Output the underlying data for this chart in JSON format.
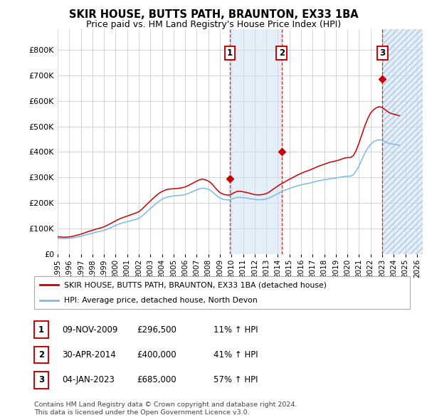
{
  "title": "SKIR HOUSE, BUTTS PATH, BRAUNTON, EX33 1BA",
  "subtitle": "Price paid vs. HM Land Registry's House Price Index (HPI)",
  "xlim": [
    1995.0,
    2026.5
  ],
  "ylim": [
    0,
    880000
  ],
  "yticks": [
    0,
    100000,
    200000,
    300000,
    400000,
    500000,
    600000,
    700000,
    800000
  ],
  "xticks": [
    1995,
    1996,
    1997,
    1998,
    1999,
    2000,
    2001,
    2002,
    2003,
    2004,
    2005,
    2006,
    2007,
    2008,
    2009,
    2010,
    2011,
    2012,
    2013,
    2014,
    2015,
    2016,
    2017,
    2018,
    2019,
    2020,
    2021,
    2022,
    2023,
    2024,
    2025,
    2026
  ],
  "sale_dates": [
    2009.86,
    2014.33,
    2023.02
  ],
  "sale_prices": [
    296500,
    400000,
    685000
  ],
  "sale_labels": [
    "1",
    "2",
    "3"
  ],
  "sale_annotations": [
    [
      "09-NOV-2009",
      "£296,500",
      "11% ↑ HPI"
    ],
    [
      "30-APR-2014",
      "£400,000",
      "41% ↑ HPI"
    ],
    [
      "04-JAN-2023",
      "£685,000",
      "57% ↑ HPI"
    ]
  ],
  "legend_line1": "SKIR HOUSE, BUTTS PATH, BRAUNTON, EX33 1BA (detached house)",
  "legend_line2": "HPI: Average price, detached house, North Devon",
  "footer1": "Contains HM Land Registry data © Crown copyright and database right 2024.",
  "footer2": "This data is licensed under the Open Government Licence v3.0.",
  "red_color": "#cc0000",
  "blue_color": "#7cb9e8",
  "shade_color": "#cce0f5",
  "hatch_color": "#b0c8e0",
  "grid_color": "#cccccc",
  "bg_color": "#ffffff",
  "hpi_data_x": [
    1995.0,
    1995.25,
    1995.5,
    1995.75,
    1996.0,
    1996.25,
    1996.5,
    1996.75,
    1997.0,
    1997.25,
    1997.5,
    1997.75,
    1998.0,
    1998.25,
    1998.5,
    1998.75,
    1999.0,
    1999.25,
    1999.5,
    1999.75,
    2000.0,
    2000.25,
    2000.5,
    2000.75,
    2001.0,
    2001.25,
    2001.5,
    2001.75,
    2002.0,
    2002.25,
    2002.5,
    2002.75,
    2003.0,
    2003.25,
    2003.5,
    2003.75,
    2004.0,
    2004.25,
    2004.5,
    2004.75,
    2005.0,
    2005.25,
    2005.5,
    2005.75,
    2006.0,
    2006.25,
    2006.5,
    2006.75,
    2007.0,
    2007.25,
    2007.5,
    2007.75,
    2008.0,
    2008.25,
    2008.5,
    2008.75,
    2009.0,
    2009.25,
    2009.5,
    2009.75,
    2010.0,
    2010.25,
    2010.5,
    2010.75,
    2011.0,
    2011.25,
    2011.5,
    2011.75,
    2012.0,
    2012.25,
    2012.5,
    2012.75,
    2013.0,
    2013.25,
    2013.5,
    2013.75,
    2014.0,
    2014.25,
    2014.5,
    2014.75,
    2015.0,
    2015.25,
    2015.5,
    2015.75,
    2016.0,
    2016.25,
    2016.5,
    2016.75,
    2017.0,
    2017.25,
    2017.5,
    2017.75,
    2018.0,
    2018.25,
    2018.5,
    2018.75,
    2019.0,
    2019.25,
    2019.5,
    2019.75,
    2020.0,
    2020.25,
    2020.5,
    2020.75,
    2021.0,
    2021.25,
    2021.5,
    2021.75,
    2022.0,
    2022.25,
    2022.5,
    2022.75,
    2023.0,
    2023.25,
    2023.5,
    2023.75,
    2024.0,
    2024.25,
    2024.5
  ],
  "hpi_data_y": [
    62000,
    61000,
    60500,
    61000,
    62000,
    63000,
    65000,
    67000,
    70000,
    73000,
    76000,
    79000,
    82000,
    85000,
    88000,
    90000,
    93000,
    97000,
    102000,
    107000,
    112000,
    117000,
    121000,
    124000,
    127000,
    130000,
    133000,
    136000,
    140000,
    148000,
    158000,
    168000,
    178000,
    188000,
    198000,
    207000,
    215000,
    220000,
    224000,
    226000,
    228000,
    229000,
    230000,
    231000,
    233000,
    237000,
    242000,
    247000,
    252000,
    256000,
    258000,
    257000,
    254000,
    248000,
    238000,
    228000,
    220000,
    215000,
    213000,
    212000,
    215000,
    219000,
    222000,
    222000,
    221000,
    220000,
    218000,
    216000,
    214000,
    213000,
    213000,
    214000,
    216000,
    220000,
    225000,
    231000,
    237000,
    243000,
    248000,
    253000,
    257000,
    261000,
    265000,
    268000,
    271000,
    274000,
    276000,
    278000,
    281000,
    284000,
    287000,
    289000,
    291000,
    293000,
    295000,
    296000,
    298000,
    300000,
    302000,
    304000,
    305000,
    305000,
    310000,
    325000,
    345000,
    370000,
    395000,
    415000,
    430000,
    440000,
    445000,
    448000,
    445000,
    440000,
    435000,
    432000,
    430000,
    428000,
    426000
  ],
  "price_data_x": [
    1995.0,
    1995.25,
    1995.5,
    1995.75,
    1996.0,
    1996.25,
    1996.5,
    1996.75,
    1997.0,
    1997.25,
    1997.5,
    1997.75,
    1998.0,
    1998.25,
    1998.5,
    1998.75,
    1999.0,
    1999.25,
    1999.5,
    1999.75,
    2000.0,
    2000.25,
    2000.5,
    2000.75,
    2001.0,
    2001.25,
    2001.5,
    2001.75,
    2002.0,
    2002.25,
    2002.5,
    2002.75,
    2003.0,
    2003.25,
    2003.5,
    2003.75,
    2004.0,
    2004.25,
    2004.5,
    2004.75,
    2005.0,
    2005.25,
    2005.5,
    2005.75,
    2006.0,
    2006.25,
    2006.5,
    2006.75,
    2007.0,
    2007.25,
    2007.5,
    2007.75,
    2008.0,
    2008.25,
    2008.5,
    2008.75,
    2009.0,
    2009.25,
    2009.5,
    2009.75,
    2010.0,
    2010.25,
    2010.5,
    2010.75,
    2011.0,
    2011.25,
    2011.5,
    2011.75,
    2012.0,
    2012.25,
    2012.5,
    2012.75,
    2013.0,
    2013.25,
    2013.5,
    2013.75,
    2014.0,
    2014.25,
    2014.5,
    2014.75,
    2015.0,
    2015.25,
    2015.5,
    2015.75,
    2016.0,
    2016.25,
    2016.5,
    2016.75,
    2017.0,
    2017.25,
    2017.5,
    2017.75,
    2018.0,
    2018.25,
    2018.5,
    2018.75,
    2019.0,
    2019.25,
    2019.5,
    2019.75,
    2020.0,
    2020.25,
    2020.5,
    2020.75,
    2021.0,
    2021.25,
    2021.5,
    2021.75,
    2022.0,
    2022.25,
    2022.5,
    2022.75,
    2023.0,
    2023.25,
    2023.5,
    2023.75,
    2024.0,
    2024.25,
    2024.5
  ],
  "price_data_y": [
    68000,
    67000,
    66000,
    66500,
    67500,
    69000,
    72000,
    75000,
    78000,
    82000,
    86000,
    90000,
    93000,
    97000,
    100000,
    103000,
    107000,
    112000,
    118000,
    124000,
    130000,
    136000,
    141000,
    145000,
    149000,
    153000,
    157000,
    161000,
    166000,
    175000,
    186000,
    197000,
    208000,
    219000,
    229000,
    238000,
    245000,
    250000,
    254000,
    255000,
    256000,
    257000,
    258000,
    260000,
    263000,
    268000,
    274000,
    280000,
    286000,
    291000,
    294000,
    291000,
    286000,
    278000,
    265000,
    252000,
    241000,
    235000,
    232000,
    231000,
    235000,
    241000,
    246000,
    246000,
    244000,
    242000,
    239000,
    236000,
    233000,
    232000,
    232000,
    234000,
    237000,
    243000,
    251000,
    259000,
    267000,
    274000,
    280000,
    287000,
    293000,
    299000,
    305000,
    311000,
    316000,
    321000,
    325000,
    329000,
    334000,
    339000,
    344000,
    348000,
    352000,
    356000,
    360000,
    362000,
    365000,
    368000,
    372000,
    376000,
    378000,
    378000,
    385000,
    405000,
    435000,
    468000,
    502000,
    530000,
    552000,
    565000,
    573000,
    578000,
    574000,
    566000,
    557000,
    551000,
    548000,
    545000,
    542000
  ]
}
